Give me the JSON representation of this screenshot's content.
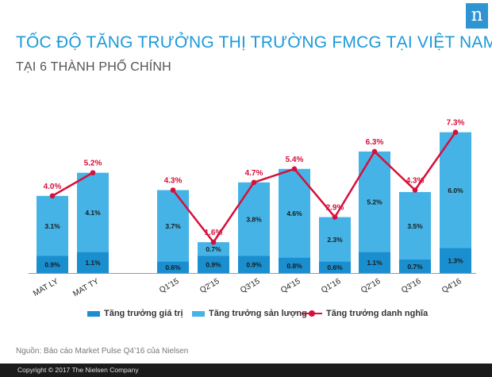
{
  "header": {
    "logo": "n",
    "title": "TỐC ĐỘ TĂNG TRƯỞNG THỊ TRƯỜNG FMCG TẠI VIỆT NAM",
    "subtitle": "TẠI 6 THÀNH PHỐ CHÍNH"
  },
  "chart_data": {
    "type": "bar",
    "stacked": true,
    "categories": [
      "MAT LY",
      "MAT TY",
      "Q1'15",
      "Q2'15",
      "Q3'15",
      "Q4'15",
      "Q1'16",
      "Q2'16",
      "Q3'16",
      "Q4'16"
    ],
    "series": [
      {
        "name": "Tăng trưởng giá trị",
        "kind": "bar",
        "color": "#1a8fd0",
        "values": [
          0.9,
          1.1,
          0.6,
          0.9,
          0.9,
          0.8,
          0.6,
          1.1,
          0.7,
          1.3
        ],
        "labels": [
          "0.9%",
          "1.1%",
          "0.6%",
          "0.9%",
          "0.9%",
          "0.8%",
          "0.6%",
          "1.1%",
          "0.7%",
          "1.3%"
        ]
      },
      {
        "name": "Tăng trưởng sản lượng",
        "kind": "bar",
        "color": "#45b3e6",
        "values": [
          3.1,
          4.1,
          3.7,
          0.7,
          3.8,
          4.6,
          2.3,
          5.2,
          3.5,
          6.0
        ],
        "labels": [
          "3.1%",
          "4.1%",
          "3.7%",
          "0.7%",
          "3.8%",
          "4.6%",
          "2.3%",
          "5.2%",
          "3.5%",
          "6.0%"
        ]
      },
      {
        "name": "Tăng trưởng danh nghĩa",
        "kind": "line",
        "color": "#d6103a",
        "values": [
          4.0,
          5.2,
          4.3,
          1.6,
          4.7,
          5.4,
          2.9,
          6.3,
          4.3,
          7.3
        ],
        "labels": [
          "4.0%",
          "5.2%",
          "4.3%",
          "1.6%",
          "4.7%",
          "5.4%",
          "2.9%",
          "6.3%",
          "4.3%",
          "7.3%"
        ]
      }
    ],
    "line_groups": [
      [
        0,
        1
      ],
      [
        2,
        3,
        4,
        5,
        6,
        7,
        8,
        9
      ]
    ],
    "ylim": [
      0,
      8
    ],
    "grid": false,
    "legend_position": "bottom"
  },
  "footer": {
    "source": "Nguồn: Báo cáo Market Pulse Q4’16 của Nielsen",
    "copyright": "Copyright © 2017 The Nielsen Company"
  }
}
